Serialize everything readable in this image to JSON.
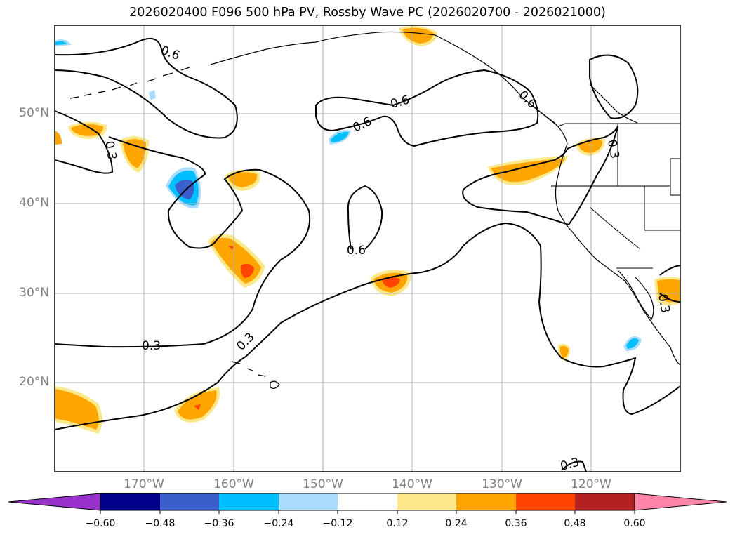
{
  "title": "2026020400 F096 500 hPa PV, Rossby Wave PC (2026020700 - 2026021000)",
  "map": {
    "lat_labels": [
      "50°N",
      "40°N",
      "30°N",
      "20°N"
    ],
    "lon_labels": [
      "170°W",
      "160°W",
      "150°W",
      "140°W",
      "130°W",
      "120°W"
    ],
    "contour_labels": [
      "0.6",
      "0.3",
      "0.6",
      "0.6",
      "0.6",
      "0.3",
      "0.3",
      "0.3",
      "0.3",
      "0.6",
      "0.3"
    ],
    "colors": {
      "land_outline": "#000000",
      "grid": "#b0b0b0",
      "pos_weak": "#fde88a",
      "pos_mid": "#ffa500",
      "pos_strong": "#ff4500",
      "neg_weak": "#aadcff",
      "neg_mid": "#00bfff",
      "neg_strong": "#3a5fcd"
    }
  },
  "colorbar": {
    "ticks": [
      "−0.60",
      "−0.48",
      "−0.36",
      "−0.24",
      "−0.12",
      "0.12",
      "0.24",
      "0.36",
      "0.48",
      "0.60"
    ],
    "colors": [
      "#9932cc",
      "#00008b",
      "#3a5fcd",
      "#00bfff",
      "#aadcff",
      "#ffffff",
      "#fde88a",
      "#ffa500",
      "#ff4500",
      "#b22222",
      "#ff85a8"
    ]
  }
}
